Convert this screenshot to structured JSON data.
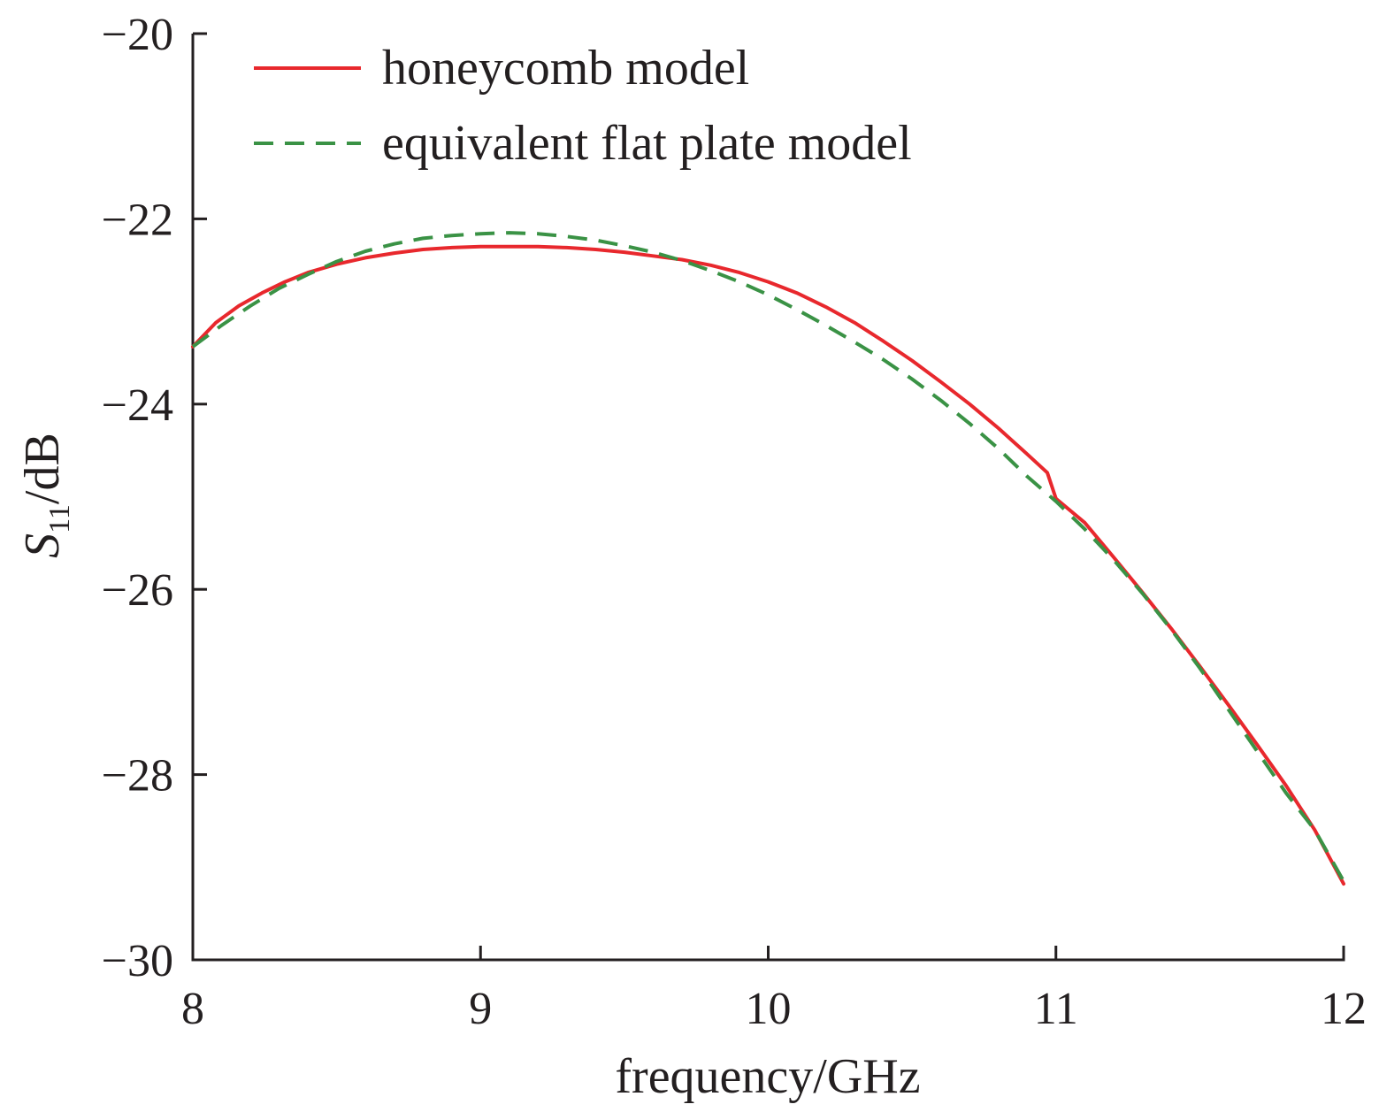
{
  "chart_data": {
    "type": "line",
    "xlabel": "frequency/GHz",
    "ylabel": {
      "symbol": "S",
      "subscript": "11",
      "unit": "/dB"
    },
    "xlim": [
      8,
      12
    ],
    "ylim": [
      -30,
      -20
    ],
    "xticks": [
      "8",
      "9",
      "10",
      "11",
      "12"
    ],
    "yticks": [
      "−30",
      "−28",
      "−26",
      "−24",
      "−22",
      "−20"
    ],
    "grid": false,
    "legend_position": "top-left",
    "series": [
      {
        "name": "honeycomb model",
        "color": "#e8282d",
        "style": "solid",
        "x": [
          8.0,
          8.08,
          8.16,
          8.24,
          8.32,
          8.4,
          8.5,
          8.6,
          8.7,
          8.8,
          8.9,
          9.0,
          9.1,
          9.2,
          9.3,
          9.4,
          9.5,
          9.6,
          9.7,
          9.8,
          9.9,
          10.0,
          10.1,
          10.2,
          10.3,
          10.4,
          10.5,
          10.6,
          10.7,
          10.8,
          10.9,
          10.97,
          11.0,
          11.1,
          11.2,
          11.3,
          11.4,
          11.5,
          11.6,
          11.7,
          11.8,
          11.9,
          12.0
        ],
        "y": [
          -23.38,
          -23.12,
          -22.94,
          -22.8,
          -22.68,
          -22.58,
          -22.49,
          -22.42,
          -22.37,
          -22.33,
          -22.31,
          -22.3,
          -22.3,
          -22.3,
          -22.31,
          -22.33,
          -22.36,
          -22.4,
          -22.44,
          -22.5,
          -22.58,
          -22.68,
          -22.8,
          -22.95,
          -23.12,
          -23.32,
          -23.53,
          -23.76,
          -24.0,
          -24.26,
          -24.54,
          -24.74,
          -25.02,
          -25.28,
          -25.65,
          -26.03,
          -26.42,
          -26.83,
          -27.25,
          -27.68,
          -28.12,
          -28.6,
          -29.18
        ]
      },
      {
        "name": "equivalent flat plate model",
        "color": "#3a9245",
        "style": "dashed",
        "x": [
          8.0,
          8.1,
          8.2,
          8.3,
          8.4,
          8.5,
          8.6,
          8.7,
          8.8,
          8.9,
          9.0,
          9.1,
          9.2,
          9.3,
          9.4,
          9.5,
          9.6,
          9.7,
          9.8,
          9.9,
          10.0,
          10.1,
          10.2,
          10.3,
          10.4,
          10.5,
          10.6,
          10.7,
          10.8,
          10.9,
          11.0,
          11.1,
          11.2,
          11.3,
          11.4,
          11.5,
          11.6,
          11.7,
          11.8,
          11.9,
          12.0
        ],
        "y": [
          -23.38,
          -23.15,
          -22.94,
          -22.75,
          -22.6,
          -22.46,
          -22.35,
          -22.27,
          -22.21,
          -22.18,
          -22.16,
          -22.15,
          -22.16,
          -22.19,
          -22.23,
          -22.29,
          -22.36,
          -22.45,
          -22.56,
          -22.68,
          -22.82,
          -22.98,
          -23.15,
          -23.33,
          -23.52,
          -23.73,
          -23.96,
          -24.21,
          -24.48,
          -24.78,
          -25.05,
          -25.35,
          -25.68,
          -26.04,
          -26.43,
          -26.85,
          -27.3,
          -27.75,
          -28.2,
          -28.6,
          -29.15
        ]
      }
    ]
  }
}
